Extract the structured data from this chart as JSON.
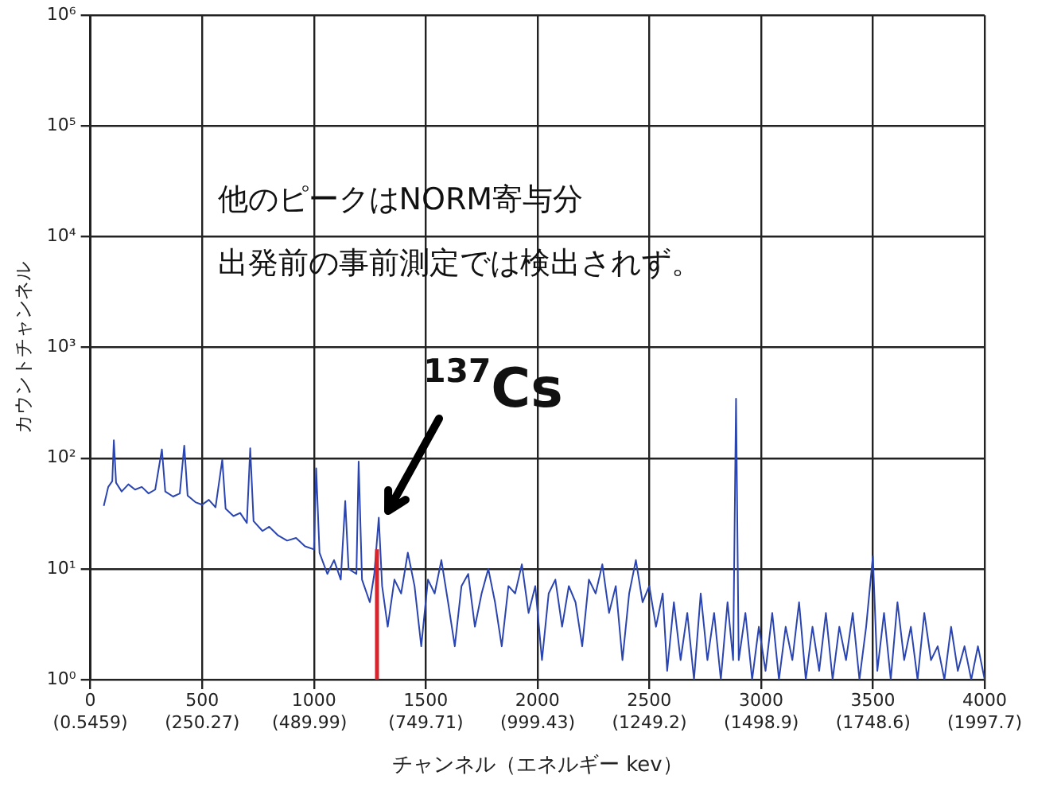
{
  "chart_data": {
    "type": "line",
    "xlabel": "チャンネル（エネルギー kev）",
    "ylabel": "カウントチャンネル",
    "xlim": [
      0,
      4000
    ],
    "xticks": [
      0,
      500,
      1000,
      1500,
      2000,
      2500,
      3000,
      3500,
      4000
    ],
    "x2lim": [
      0.5459,
      1997.7
    ],
    "x2ticks": [
      {
        "value": 0.5459,
        "label": "(0.5459)"
      },
      {
        "value": 250.27,
        "label": "(250.27)"
      },
      {
        "value": 489.99,
        "label": "(489.99)"
      },
      {
        "value": 749.71,
        "label": "(749.71)"
      },
      {
        "value": 999.43,
        "label": "(999.43)"
      },
      {
        "value": 1249.2,
        "label": "(1249.2)"
      },
      {
        "value": 1498.9,
        "label": "(1498.9)"
      },
      {
        "value": 1748.6,
        "label": "(1748.6)"
      },
      {
        "value": 1997.7,
        "label": "(1997.7)"
      }
    ],
    "ylim": [
      1,
      1000000
    ],
    "log": "y",
    "yticks": [
      {
        "value": 1,
        "label": "10⁰"
      },
      {
        "value": 10,
        "label": "10¹"
      },
      {
        "value": 100,
        "label": "10²"
      },
      {
        "value": 1000,
        "label": "10³"
      },
      {
        "value": 10000,
        "label": "10⁴"
      },
      {
        "value": 100000,
        "label": "10⁵"
      },
      {
        "value": 1000000,
        "label": "10⁶"
      }
    ],
    "grid": true,
    "legend": false,
    "marker": "none",
    "line_style": "solid",
    "series": [
      {
        "color": "#2b45b0",
        "x": [
          60,
          80,
          98,
          105,
          115,
          140,
          170,
          200,
          230,
          260,
          290,
          320,
          335,
          370,
          400,
          420,
          435,
          470,
          500,
          530,
          560,
          590,
          605,
          640,
          670,
          700,
          715,
          730,
          770,
          800,
          840,
          880,
          920,
          960,
          1000,
          1010,
          1025,
          1060,
          1090,
          1120,
          1140,
          1155,
          1190,
          1200,
          1215,
          1250,
          1270,
          1290,
          1305,
          1330,
          1360,
          1390,
          1420,
          1450,
          1480,
          1510,
          1540,
          1570,
          1600,
          1630,
          1660,
          1690,
          1720,
          1750,
          1780,
          1810,
          1840,
          1870,
          1900,
          1930,
          1960,
          1990,
          2020,
          2050,
          2080,
          2110,
          2140,
          2170,
          2200,
          2230,
          2260,
          2290,
          2320,
          2350,
          2380,
          2410,
          2440,
          2470,
          2500,
          2530,
          2560,
          2580,
          2610,
          2640,
          2670,
          2700,
          2730,
          2760,
          2790,
          2820,
          2850,
          2875,
          2888,
          2900,
          2930,
          2960,
          2990,
          3020,
          3050,
          3080,
          3110,
          3140,
          3170,
          3200,
          3230,
          3260,
          3290,
          3320,
          3350,
          3380,
          3410,
          3440,
          3470,
          3500,
          3520,
          3550,
          3580,
          3610,
          3640,
          3670,
          3700,
          3730,
          3760,
          3790,
          3820,
          3850,
          3880,
          3910,
          3940,
          3970,
          4000
        ],
        "values": [
          37,
          55,
          62,
          145,
          60,
          50,
          58,
          52,
          55,
          48,
          52,
          120,
          50,
          45,
          48,
          130,
          46,
          40,
          38,
          42,
          36,
          97,
          35,
          30,
          32,
          26,
          123,
          27,
          22,
          24,
          20,
          18,
          19,
          16,
          15,
          81,
          14,
          9,
          12,
          8,
          41,
          10,
          9,
          93,
          8,
          5,
          9,
          29,
          7,
          3,
          8,
          6,
          14,
          7,
          2,
          8,
          6,
          12,
          5,
          2,
          7,
          9,
          3,
          6,
          10,
          5,
          2,
          7,
          6,
          11,
          4,
          7,
          1.5,
          6,
          8,
          3,
          7,
          5,
          2,
          8,
          6,
          11,
          4,
          7,
          1.5,
          6,
          12,
          5,
          7,
          3,
          6,
          1.2,
          5,
          1.5,
          4,
          1,
          6,
          1.5,
          4,
          1,
          5,
          1.5,
          345,
          1.5,
          4,
          1,
          3,
          1.2,
          4,
          1,
          3,
          1.5,
          5,
          1,
          3,
          1.2,
          4,
          1,
          3,
          1.5,
          4,
          1,
          3,
          13,
          1.2,
          4,
          1,
          5,
          1.5,
          3,
          1,
          4,
          1.5,
          2,
          1,
          3,
          1.2,
          2,
          1,
          2,
          1
        ]
      },
      {
        "color": "#d8242c",
        "x": [
          1282,
          1282
        ],
        "values": [
          1,
          15
        ]
      }
    ],
    "annotations": [
      "他のピークはNORM寄与分",
      "出発前の事前測定では検出されず。",
      {
        "text": "$^{137}$Cs",
        "x": 1290,
        "y": 29
      }
    ]
  }
}
